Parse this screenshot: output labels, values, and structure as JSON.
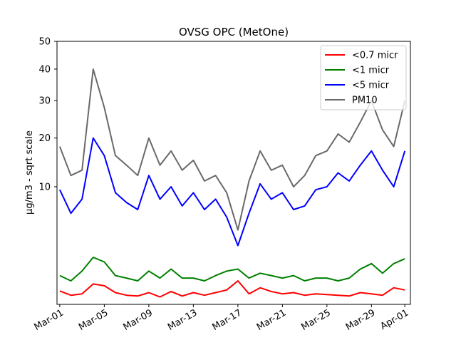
{
  "chart_data": {
    "type": "line",
    "title": "OVSG OPC (MetOne)",
    "xlabel": "",
    "ylabel": "µg/m3 - sqrt scale",
    "y_scale": "sqrt",
    "ylim": [
      0,
      50
    ],
    "yticks": [
      10,
      20,
      30,
      40,
      50
    ],
    "xlim": [
      "2019-02-28T18:00",
      "2019-04-01T12:00"
    ],
    "xticks": [
      "Mar-01",
      "Mar-05",
      "Mar-09",
      "Mar-13",
      "Mar-17",
      "Mar-21",
      "Mar-25",
      "Mar-29",
      "Apr-01"
    ],
    "xtick_dates": [
      "2019-03-01",
      "2019-03-05",
      "2019-03-09",
      "2019-03-13",
      "2019-03-17",
      "2019-03-21",
      "2019-03-25",
      "2019-03-29",
      "2019-04-01"
    ],
    "grid": false,
    "legend_position": "top-right",
    "x": [
      "2019-03-01",
      "2019-03-02",
      "2019-03-03",
      "2019-03-04",
      "2019-03-05",
      "2019-03-06",
      "2019-03-07",
      "2019-03-08",
      "2019-03-09",
      "2019-03-10",
      "2019-03-11",
      "2019-03-12",
      "2019-03-13",
      "2019-03-14",
      "2019-03-15",
      "2019-03-16",
      "2019-03-17",
      "2019-03-18",
      "2019-03-19",
      "2019-03-20",
      "2019-03-21",
      "2019-03-22",
      "2019-03-23",
      "2019-03-24",
      "2019-03-25",
      "2019-03-26",
      "2019-03-27",
      "2019-03-28",
      "2019-03-29",
      "2019-03-30",
      "2019-03-31",
      "2019-04-01"
    ],
    "series": [
      {
        "name": "<0.7 micr",
        "color": "#ff0000",
        "values": [
          0.13,
          0.06,
          0.08,
          0.3,
          0.25,
          0.1,
          0.06,
          0.05,
          0.1,
          0.04,
          0.12,
          0.05,
          0.1,
          0.06,
          0.1,
          0.15,
          0.4,
          0.08,
          0.2,
          0.12,
          0.08,
          0.1,
          0.06,
          0.08,
          0.07,
          0.06,
          0.05,
          0.1,
          0.08,
          0.06,
          0.2,
          0.15
        ]
      },
      {
        "name": "<1 micr",
        "color": "#008000",
        "values": [
          0.6,
          0.4,
          0.8,
          1.6,
          1.3,
          0.6,
          0.5,
          0.4,
          0.8,
          0.5,
          0.9,
          0.5,
          0.5,
          0.4,
          0.6,
          0.8,
          0.9,
          0.5,
          0.7,
          0.6,
          0.5,
          0.6,
          0.4,
          0.5,
          0.5,
          0.4,
          0.5,
          0.9,
          1.2,
          0.7,
          1.2,
          1.5
        ]
      },
      {
        "name": "<5 micr",
        "color": "#0000ff",
        "values": [
          9.5,
          6.0,
          8.0,
          20.0,
          16.0,
          9.0,
          7.5,
          6.5,
          12.0,
          8.0,
          10.0,
          7.0,
          9.0,
          6.5,
          8.0,
          5.5,
          2.5,
          6.0,
          10.5,
          8.0,
          9.0,
          6.5,
          7.0,
          9.5,
          10.0,
          12.5,
          11.0,
          14.0,
          17.0,
          13.0,
          10.0,
          17.0
        ]
      },
      {
        "name": "PM10",
        "color": "#696969",
        "values": [
          18.0,
          12.0,
          13.0,
          40.0,
          28.0,
          16.0,
          14.0,
          12.0,
          20.0,
          14.0,
          17.0,
          13.0,
          15.0,
          11.0,
          12.0,
          9.0,
          4.0,
          11.0,
          17.0,
          13.0,
          14.0,
          10.0,
          12.0,
          16.0,
          17.0,
          21.0,
          19.0,
          24.0,
          30.0,
          22.0,
          18.0,
          30.0
        ]
      }
    ]
  }
}
